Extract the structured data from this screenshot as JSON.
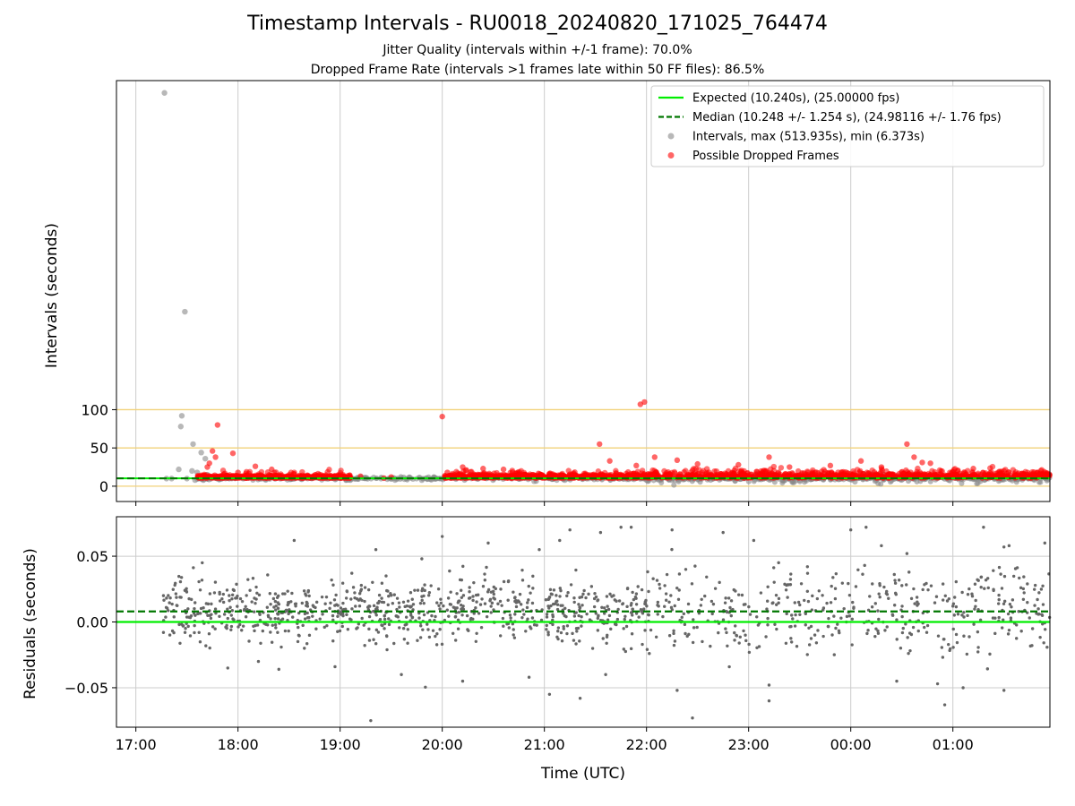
{
  "figure": {
    "title": "Timestamp Intervals - RU0018_20240820_171025_764474",
    "subtitle_1": "Jitter Quality (intervals within +/-1 frame): 70.0%",
    "subtitle_2": "Dropped Frame Rate (intervals >1 frames late within 50 FF files): 86.5%"
  },
  "colors": {
    "expected": "#00ee00",
    "median": "#007700",
    "intervals": "#888888",
    "dropped": "#ff0000",
    "residual_points": "#666666",
    "reference_lines": "#f2d27a",
    "grid": "#cccccc"
  },
  "chart_data": [
    {
      "type": "scatter",
      "name": "intervals-panel",
      "ylabel": "Intervals (seconds)",
      "xlabel": "",
      "x_axis": {
        "unit": "hours since 17:00 UTC on 2024-08-20",
        "range": [
          -0.19,
          8.95
        ],
        "tick_values": [
          0,
          1,
          2,
          3,
          4,
          5,
          6,
          7,
          8
        ]
      },
      "ylim": [
        -20,
        530
      ],
      "y_ticks": [
        0,
        50,
        100
      ],
      "y_tick_labels": [
        "0",
        "50",
        "100"
      ],
      "grid": "vertical",
      "horizontal_reference_lines": [
        0,
        50,
        100
      ],
      "expected_value": 10.24,
      "median_value": 10.248,
      "legend": {
        "placement": "top-right",
        "entries": [
          {
            "label": "Expected (10.240s), (25.00000 fps)",
            "kind": "solid-line",
            "color": "#00ee00"
          },
          {
            "label": "Median (10.248 +/- 1.254 s), (24.98116 +/- 1.76 fps)",
            "kind": "dashed-line",
            "color": "#007700"
          },
          {
            "label": "Intervals, max (513.935s), min (6.373s)",
            "kind": "dot",
            "color": "#888888"
          },
          {
            "label": "Possible Dropped Frames",
            "kind": "dot",
            "color": "#ff0000"
          }
        ]
      },
      "series": [
        {
          "name": "Intervals, max (513.935s), min (6.373s)",
          "points": [
            [
              0.28,
              513.9
            ],
            [
              0.48,
              228
            ],
            [
              0.45,
              92
            ],
            [
              0.44,
              78
            ],
            [
              0.56,
              55
            ],
            [
              0.64,
              44
            ],
            [
              0.42,
              22
            ],
            [
              0.55,
              20
            ],
            [
              0.68,
              36
            ],
            [
              0.6,
              18
            ],
            [
              0.62,
              12
            ],
            [
              0.58,
              8
            ],
            [
              0.3,
              10
            ],
            [
              0.35,
              10
            ],
            [
              0.5,
              10
            ],
            [
              0.7,
              15
            ],
            [
              0.65,
              10
            ],
            [
              0.66,
              8
            ],
            [
              2.1,
              8
            ],
            [
              2.4,
              10
            ],
            [
              2.8,
              8
            ],
            [
              3.9,
              6.5
            ],
            [
              4.2,
              8
            ],
            [
              5.0,
              8
            ],
            [
              6.1,
              9
            ],
            [
              6.5,
              8
            ]
          ]
        },
        {
          "name": "Possible Dropped Frames",
          "points": [
            [
              0.8,
              80
            ],
            [
              0.75,
              46
            ],
            [
              0.78,
              38
            ],
            [
              0.72,
              30
            ],
            [
              0.7,
              25
            ],
            [
              0.95,
              43
            ],
            [
              1.0,
              18
            ],
            [
              1.2,
              14
            ],
            [
              1.6,
              14
            ],
            [
              1.8,
              15
            ],
            [
              2.0,
              13
            ],
            [
              2.2,
              13
            ],
            [
              1.17,
              26
            ],
            [
              1.33,
              22
            ],
            [
              1.55,
              16
            ],
            [
              2.5,
              12
            ],
            [
              3.0,
              91
            ],
            [
              3.05,
              18
            ],
            [
              3.2,
              25
            ],
            [
              3.4,
              23
            ],
            [
              3.6,
              22
            ],
            [
              4.54,
              55
            ],
            [
              4.64,
              33
            ],
            [
              4.9,
              27
            ],
            [
              4.94,
              107
            ],
            [
              4.98,
              110
            ],
            [
              5.08,
              38
            ],
            [
              5.3,
              34
            ],
            [
              5.5,
              29
            ],
            [
              5.9,
              28
            ],
            [
              6.2,
              38
            ],
            [
              6.4,
              25
            ],
            [
              6.8,
              27
            ],
            [
              7.1,
              33
            ],
            [
              7.3,
              25
            ],
            [
              7.55,
              55
            ],
            [
              7.62,
              38
            ],
            [
              7.7,
              31
            ],
            [
              7.78,
              30
            ],
            [
              8.2,
              23
            ],
            [
              8.5,
              20
            ]
          ]
        }
      ]
    },
    {
      "type": "scatter",
      "name": "residuals-panel",
      "ylabel": "Residuals (seconds)",
      "xlabel": "Time (UTC)",
      "x_axis": {
        "unit": "hours since 17:00 UTC on 2024-08-20",
        "range": [
          -0.19,
          8.95
        ],
        "tick_values": [
          0,
          1,
          2,
          3,
          4,
          5,
          6,
          7,
          8
        ],
        "tick_labels": [
          "17:00",
          "18:00",
          "19:00",
          "20:00",
          "21:00",
          "22:00",
          "23:00",
          "00:00",
          "01:00"
        ]
      },
      "ylim": [
        -0.08,
        0.08
      ],
      "y_ticks": [
        0.05,
        0.0,
        -0.05
      ],
      "y_tick_labels": [
        "0.05",
        "0.00",
        "−0.05"
      ],
      "grid": "both",
      "expected_value": 0.0,
      "median_value": 0.008,
      "series": [
        {
          "name": "Residuals",
          "spread_sd": 0.016,
          "x_start": 0.27,
          "x_end": 8.95,
          "points": [
            [
              0.27,
              0.02
            ],
            [
              0.27,
              -0.008
            ],
            [
              0.48,
              0.024
            ],
            [
              0.65,
              0.045
            ],
            [
              0.9,
              -0.035
            ],
            [
              1.2,
              -0.03
            ],
            [
              1.4,
              -0.036
            ],
            [
              1.55,
              0.062
            ],
            [
              1.65,
              -0.02
            ],
            [
              1.95,
              -0.034
            ],
            [
              2.35,
              0.055
            ],
            [
              2.3,
              -0.075
            ],
            [
              2.45,
              0.035
            ],
            [
              2.6,
              -0.04
            ],
            [
              2.8,
              0.048
            ],
            [
              3.0,
              0.065
            ],
            [
              3.2,
              -0.045
            ],
            [
              3.45,
              0.06
            ],
            [
              3.85,
              -0.042
            ],
            [
              3.95,
              0.055
            ],
            [
              4.05,
              -0.055
            ],
            [
              4.15,
              0.062
            ],
            [
              4.25,
              0.07
            ],
            [
              4.35,
              -0.058
            ],
            [
              4.55,
              0.068
            ],
            [
              4.6,
              -0.04
            ],
            [
              4.75,
              0.072
            ],
            [
              4.85,
              0.072
            ],
            [
              5.25,
              0.07
            ],
            [
              5.3,
              -0.052
            ],
            [
              5.45,
              -0.073
            ],
            [
              5.75,
              0.068
            ],
            [
              6.05,
              0.062
            ],
            [
              6.2,
              -0.048
            ],
            [
              6.2,
              -0.06
            ],
            [
              7.0,
              0.07
            ],
            [
              7.15,
              0.072
            ],
            [
              7.3,
              0.058
            ],
            [
              7.45,
              -0.045
            ],
            [
              7.55,
              0.052
            ],
            [
              7.85,
              -0.047
            ],
            [
              7.92,
              -0.063
            ],
            [
              8.1,
              -0.05
            ],
            [
              8.3,
              0.072
            ],
            [
              8.5,
              0.057
            ],
            [
              8.5,
              -0.052
            ],
            [
              8.55,
              0.058
            ],
            [
              8.9,
              0.06
            ]
          ]
        }
      ]
    }
  ]
}
